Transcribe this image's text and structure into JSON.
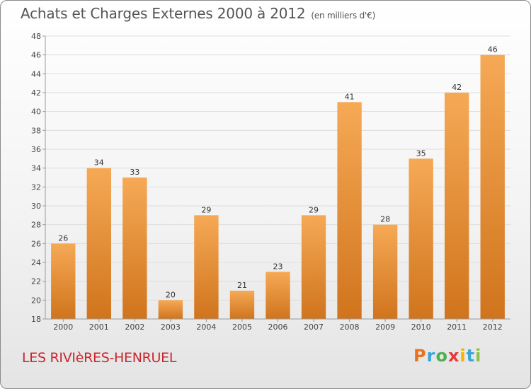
{
  "header": {
    "title": "Achats et Charges Externes 2000 à 2012",
    "subtitle": "(en milliers d'€)"
  },
  "footer": {
    "commune": "LES RIVIèRES-HENRUEL",
    "logo_letters": [
      "P",
      "r",
      "o",
      "x",
      "i",
      "t",
      "i"
    ],
    "logo_colors": [
      "#e8731c",
      "#3aa6d8",
      "#4caf50",
      "#e53935",
      "#f4b400",
      "#3aa6d8",
      "#8bc34a"
    ]
  },
  "chart_data": {
    "type": "bar",
    "title": "Achats et Charges Externes 2000 à 2012",
    "subtitle": "(en milliers d'€)",
    "categories": [
      "2000",
      "2001",
      "2002",
      "2003",
      "2004",
      "2005",
      "2006",
      "2007",
      "2008",
      "2009",
      "2010",
      "2011",
      "2012"
    ],
    "values": [
      26,
      34,
      33,
      20,
      29,
      21,
      23,
      29,
      41,
      28,
      35,
      42,
      46
    ],
    "ylim": [
      18,
      48
    ],
    "yticks": [
      18,
      20,
      22,
      24,
      26,
      28,
      30,
      32,
      34,
      36,
      38,
      40,
      42,
      44,
      46,
      48
    ],
    "grid": true,
    "bar_color_light": "#f6a955",
    "bar_color_dark": "#d0741d",
    "xlabel": "",
    "ylabel": ""
  }
}
